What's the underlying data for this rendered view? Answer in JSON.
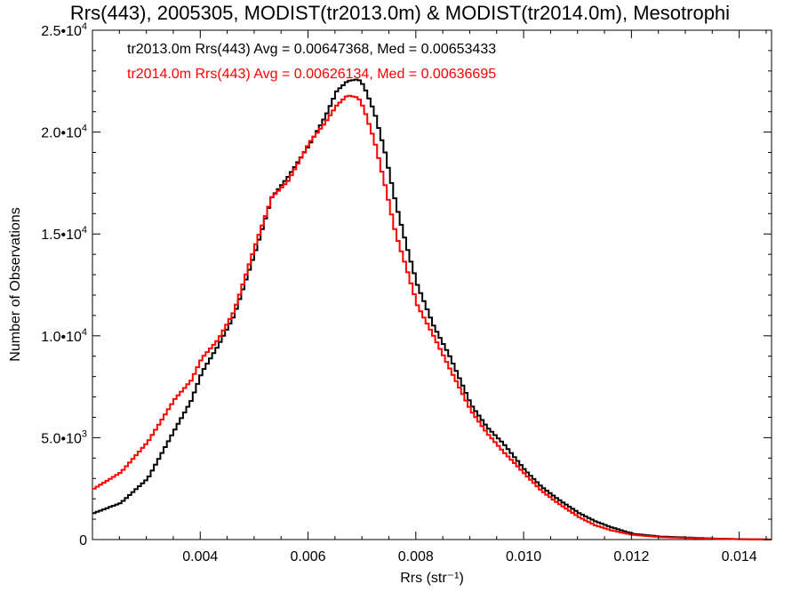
{
  "chart_data": {
    "type": "line",
    "title": "Rrs(443), 2005305, MODIST(tr2013.0m) & MODIST(tr2014.0m), Mesotrophi",
    "xlabel": "Rrs (str⁻¹)",
    "ylabel": "Number of Observations",
    "xlim": [
      0.002,
      0.0146
    ],
    "ylim": [
      0,
      25000
    ],
    "grid": false,
    "legend_position": "top-left",
    "x_ticks": [
      {
        "value": 0.004,
        "label": "0.004"
      },
      {
        "value": 0.006,
        "label": "0.006"
      },
      {
        "value": 0.008,
        "label": "0.008"
      },
      {
        "value": 0.01,
        "label": "0.010"
      },
      {
        "value": 0.012,
        "label": "0.012"
      },
      {
        "value": 0.014,
        "label": "0.014"
      }
    ],
    "y_ticks": [
      {
        "value": 0,
        "mantissa": "0",
        "exponent": ""
      },
      {
        "value": 5000,
        "mantissa": "5.0•10",
        "exponent": "3"
      },
      {
        "value": 10000,
        "mantissa": "1.0•10",
        "exponent": "4"
      },
      {
        "value": 15000,
        "mantissa": "1.5•10",
        "exponent": "4"
      },
      {
        "value": 20000,
        "mantissa": "2.0•10",
        "exponent": "4"
      },
      {
        "value": 25000,
        "mantissa": "2.5•10",
        "exponent": "4"
      }
    ],
    "series": [
      {
        "name": "tr2013.0m",
        "color": "#000000",
        "legend": "tr2013.0m Rrs(443) Avg = 0.00647368, Med = 0.00653433",
        "x": [
          0.002,
          0.0025,
          0.003,
          0.0035,
          0.0038,
          0.004,
          0.0043,
          0.0046,
          0.005,
          0.0053,
          0.0056,
          0.006,
          0.0063,
          0.0065,
          0.0067,
          0.0069,
          0.007,
          0.0072,
          0.0074,
          0.0076,
          0.0078,
          0.008,
          0.0083,
          0.0086,
          0.009,
          0.0093,
          0.0096,
          0.01,
          0.0103,
          0.0106,
          0.011,
          0.0113,
          0.0116,
          0.012,
          0.0125,
          0.013,
          0.0135,
          0.014,
          0.0146
        ],
        "y": [
          1300,
          1800,
          3000,
          5400,
          6800,
          8200,
          9500,
          11000,
          14200,
          16800,
          17800,
          19400,
          20800,
          22000,
          22500,
          22600,
          22300,
          21000,
          19000,
          16500,
          14400,
          12500,
          10500,
          9000,
          6600,
          5500,
          4700,
          3400,
          2600,
          2000,
          1300,
          900,
          600,
          280,
          150,
          100,
          50,
          20,
          0
        ]
      },
      {
        "name": "tr2014.0m",
        "color": "#ff0000",
        "legend": "tr2014.0m Rrs(443) Avg = 0.00626134, Med = 0.00636695",
        "x": [
          0.002,
          0.0025,
          0.003,
          0.0035,
          0.0038,
          0.004,
          0.0043,
          0.0046,
          0.005,
          0.0053,
          0.0056,
          0.006,
          0.0063,
          0.0065,
          0.0067,
          0.0069,
          0.007,
          0.0072,
          0.0074,
          0.0076,
          0.0078,
          0.008,
          0.0083,
          0.0086,
          0.009,
          0.0093,
          0.0096,
          0.01,
          0.0103,
          0.0106,
          0.011,
          0.0113,
          0.0116,
          0.012,
          0.0125,
          0.013,
          0.0135,
          0.014,
          0.0146
        ],
        "y": [
          2500,
          3300,
          4800,
          6900,
          7800,
          8900,
          9800,
          11200,
          14500,
          16800,
          17600,
          19500,
          20500,
          21300,
          21800,
          21700,
          21200,
          19600,
          17400,
          15000,
          13300,
          11500,
          10000,
          8400,
          6300,
          5200,
          4300,
          3200,
          2400,
          1800,
          1100,
          700,
          450,
          230,
          120,
          80,
          40,
          15,
          0
        ]
      }
    ]
  }
}
